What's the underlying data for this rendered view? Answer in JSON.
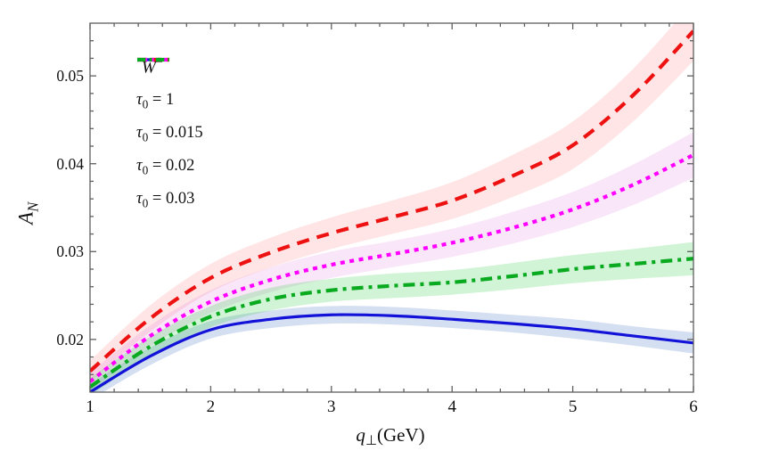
{
  "figure": {
    "background": "#ffffff",
    "frame_color": "#5f5f5f",
    "text_color": "#111111"
  },
  "chart_data": {
    "type": "line",
    "legend": {
      "header": {
        "base": "W",
        "sup": "−"
      },
      "position": "top-left-inside"
    },
    "x_axis": {
      "label": {
        "base": "q",
        "sub": "⊥",
        "unit": "(GeV)"
      },
      "lim": [
        1,
        6
      ],
      "ticks": [
        {
          "v": 1,
          "label": "1"
        },
        {
          "v": 2,
          "label": "2"
        },
        {
          "v": 3,
          "label": "3"
        },
        {
          "v": 4,
          "label": "4"
        },
        {
          "v": 5,
          "label": "5"
        },
        {
          "v": 6,
          "label": "6"
        }
      ],
      "minor_step": 0.2,
      "grid": false
    },
    "y_axis": {
      "label": {
        "base": "A",
        "sub": "N"
      },
      "lim": [
        0.014,
        0.056
      ],
      "ticks": [
        {
          "v": 0.02,
          "label": "0.02"
        },
        {
          "v": 0.03,
          "label": "0.03"
        },
        {
          "v": 0.04,
          "label": "0.04"
        },
        {
          "v": 0.05,
          "label": "0.05"
        }
      ],
      "minor_step": 0.002,
      "grid": false
    },
    "x": [
      1,
      1.5,
      2,
      2.5,
      3,
      3.5,
      4,
      4.5,
      5,
      5.5,
      6
    ],
    "series": [
      {
        "name": "tau0-1",
        "legend_label": {
          "sym": "τ",
          "sub": "0",
          "rest": " = 1"
        },
        "color": "#1212d8",
        "band_color": "rgba(80,120,200,0.24)",
        "dash": "",
        "width": 3.2,
        "y": [
          0.014,
          0.0181,
          0.0211,
          0.0223,
          0.0228,
          0.0227,
          0.0223,
          0.0218,
          0.0212,
          0.0204,
          0.0196
        ],
        "band_half_width": [
          0.0009,
          0.001,
          0.001,
          0.001,
          0.001,
          0.001,
          0.001,
          0.001,
          0.0011,
          0.0011,
          0.0012
        ]
      },
      {
        "name": "tau0-0.015",
        "legend_label": {
          "sym": "τ",
          "sub": "0",
          "rest": " = 0.015"
        },
        "color": "#ee1111",
        "band_color": "rgba(255,70,70,0.14)",
        "dash": "14 9",
        "width": 4.2,
        "y": [
          0.0164,
          0.0224,
          0.027,
          0.0299,
          0.0321,
          0.0339,
          0.0358,
          0.0386,
          0.0421,
          0.0478,
          0.0551
        ],
        "band_half_width": [
          0.0012,
          0.0015,
          0.0016,
          0.0017,
          0.0018,
          0.0019,
          0.0021,
          0.0024,
          0.0027,
          0.003,
          0.0034
        ]
      },
      {
        "name": "tau0-0.02",
        "legend_label": {
          "sym": "τ",
          "sub": "0",
          "rest": " = 0.02"
        },
        "color": "#ff00ff",
        "band_color": "rgba(216,100,216,0.16)",
        "dash": "5 5.5",
        "width": 4.2,
        "y": [
          0.0152,
          0.0204,
          0.0243,
          0.0268,
          0.0285,
          0.0297,
          0.031,
          0.0327,
          0.0348,
          0.0376,
          0.041
        ],
        "band_half_width": [
          0.001,
          0.0012,
          0.0013,
          0.0014,
          0.0015,
          0.0015,
          0.0016,
          0.0018,
          0.002,
          0.0023,
          0.0026
        ]
      },
      {
        "name": "tau0-0.03",
        "legend_label": {
          "sym": "τ",
          "sub": "0",
          "rest": " = 0.03"
        },
        "color": "#09aa20",
        "band_color": "rgba(60,210,80,0.24)",
        "dash": "13 6 4 6",
        "width": 4.2,
        "y": [
          0.0146,
          0.0192,
          0.0226,
          0.0246,
          0.0256,
          0.0261,
          0.0265,
          0.0272,
          0.028,
          0.0286,
          0.0292
        ],
        "band_half_width": [
          0.001,
          0.0011,
          0.0012,
          0.0013,
          0.0013,
          0.0014,
          0.0014,
          0.0015,
          0.0016,
          0.0017,
          0.0019
        ]
      }
    ]
  }
}
